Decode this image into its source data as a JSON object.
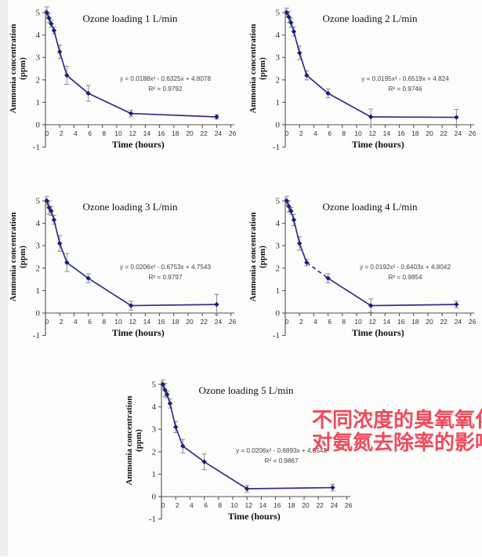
{
  "page": {
    "background": "#fcfcfa",
    "edge_shade_color": "#edefec"
  },
  "annotation": {
    "lines": [
      "不同浓度的臭氧氧化",
      "对氨氮去除率的影响"
    ],
    "color": "#f04a5c"
  },
  "axes": {
    "x_label": "Time (hours)",
    "y_label_line1": "Ammonia concentration",
    "y_label_line2": "(ppm)",
    "x_ticks": [
      0,
      2,
      4,
      6,
      8,
      10,
      12,
      14,
      16,
      18,
      20,
      22,
      24,
      26
    ],
    "y_ticks": [
      5,
      4,
      3,
      2,
      1,
      0,
      -1
    ],
    "x_range": [
      0,
      26
    ],
    "y_range": [
      -1,
      5
    ],
    "grid": false
  },
  "style": {
    "line_color": "#2f2f8e",
    "marker_color": "#1e1e78",
    "error_bar_color": "#8a8a8a",
    "axis_color": "#555555",
    "tick_label_color": "#333333",
    "title_color": "#111111",
    "equation_color": "#444444"
  },
  "chart_data": [
    {
      "type": "line",
      "title": "Ozone loading 1 L/min",
      "equation": "y = 0.0188x² - 0.6325x + 4.8078",
      "r2": "R² = 0.9792",
      "xlabel": "Time (hours)",
      "ylabel": "Ammonia concentration (ppm)",
      "x": [
        0.2,
        0.5,
        0.8,
        1.2,
        2,
        3,
        6,
        12,
        24
      ],
      "y": [
        5.0,
        4.75,
        4.5,
        4.2,
        3.25,
        2.2,
        1.4,
        0.5,
        0.35
      ],
      "yerr": [
        0.25,
        0.2,
        0.15,
        0.15,
        0.3,
        0.4,
        0.35,
        0.15,
        0.1
      ],
      "xlim": [
        0,
        26
      ],
      "ylim": [
        -1,
        5
      ]
    },
    {
      "type": "line",
      "title": "Ozone loading 2 L/min",
      "equation": "y = 0.0195x² - 0.6519x + 4.824",
      "r2": "R² = 0.9746",
      "xlabel": "Time (hours)",
      "ylabel": "Ammonia concentration (ppm)",
      "x": [
        0.2,
        0.5,
        0.8,
        1.2,
        2,
        3,
        6,
        12,
        24
      ],
      "y": [
        5.0,
        4.8,
        4.55,
        4.15,
        3.2,
        2.2,
        1.4,
        0.35,
        0.33
      ],
      "yerr": [
        0.2,
        0.25,
        0.2,
        0.2,
        0.3,
        0.2,
        0.2,
        0.35,
        0.35
      ],
      "xlim": [
        0,
        26
      ],
      "ylim": [
        -1,
        5
      ]
    },
    {
      "type": "line",
      "title": "Ozone loading 3 L/min",
      "equation": "y = 0.0206x² - 0.6753x + 4.7543",
      "r2": "R² = 0.9797",
      "xlabel": "Time (hours)",
      "ylabel": "Ammonia concentration (ppm)",
      "x": [
        0.2,
        0.5,
        0.8,
        1.2,
        2,
        3,
        6,
        12,
        24
      ],
      "y": [
        5.0,
        4.7,
        4.55,
        4.15,
        3.1,
        2.25,
        1.55,
        0.33,
        0.38
      ],
      "yerr": [
        0.2,
        0.3,
        0.2,
        0.2,
        0.35,
        0.4,
        0.2,
        0.2,
        0.45
      ],
      "xlim": [
        0,
        26
      ],
      "ylim": [
        -1,
        5
      ]
    },
    {
      "type": "line",
      "title": "Ozone loading 4 L/min",
      "equation": "y = 0.0192x² - 0.6403x + 4.8042",
      "r2": "R² = 0.9854",
      "xlabel": "Time (hours)",
      "ylabel": "Ammonia concentration (ppm)",
      "x": [
        0.2,
        0.5,
        0.8,
        1.2,
        2,
        3,
        6,
        12,
        24
      ],
      "y": [
        5.0,
        4.75,
        4.55,
        4.15,
        3.1,
        2.25,
        1.55,
        0.33,
        0.38
      ],
      "yerr": [
        0.2,
        0.25,
        0.15,
        0.25,
        0.3,
        0.15,
        0.2,
        0.3,
        0.15
      ],
      "dash_segment_from": 5,
      "xlim": [
        0,
        26
      ],
      "ylim": [
        -1,
        5
      ]
    },
    {
      "type": "line",
      "title": "Ozone loading 5 L/min",
      "equation": "y = 0.0206x² - 0.6893x + 4.8543",
      "r2": "R² = 0.9867",
      "xlabel": "Time (hours)",
      "ylabel": "Ammonia concentration (ppm)",
      "x": [
        0.2,
        0.5,
        0.8,
        1.2,
        2,
        3,
        6,
        12,
        24
      ],
      "y": [
        5.0,
        4.75,
        4.55,
        4.15,
        3.1,
        2.25,
        1.55,
        0.35,
        0.4
      ],
      "yerr": [
        0.2,
        0.3,
        0.15,
        0.2,
        0.25,
        0.3,
        0.35,
        0.15,
        0.15
      ],
      "xlim": [
        0,
        26
      ],
      "ylim": [
        -1,
        5
      ]
    }
  ]
}
